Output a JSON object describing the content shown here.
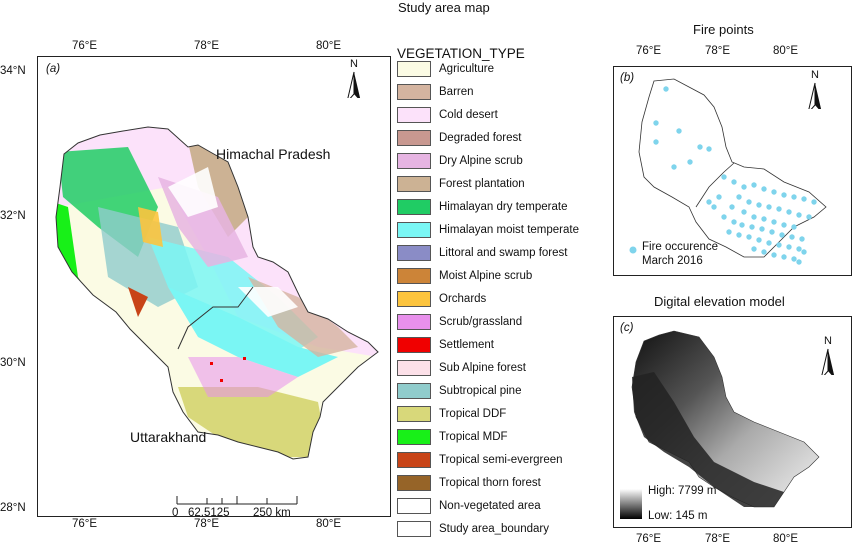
{
  "titles": {
    "main": "Study area map",
    "fire": "Fire points",
    "dem": "Digital elevation model"
  },
  "map_a": {
    "panel_label": "(a)",
    "lon_labels": [
      "76°E",
      "78°E",
      "80°E"
    ],
    "lat_labels": [
      "34°N",
      "32°N",
      "30°N",
      "28°N"
    ],
    "regions": {
      "north": "Himachal Pradesh",
      "south": "Uttarakhand"
    },
    "north_arrow": "N",
    "scale_bar": {
      "labels": [
        "0",
        "62.5125",
        "250 km"
      ]
    }
  },
  "legend": {
    "title": "VEGETATION_TYPE",
    "items": [
      {
        "label": "Agriculture",
        "color": "#fbfbe4"
      },
      {
        "label": "Barren",
        "color": "#d4b4a0"
      },
      {
        "label": "Cold desert",
        "color": "#fce2fa"
      },
      {
        "label": "Degraded forest",
        "color": "#c89890"
      },
      {
        "label": "Dry Alpine scrub",
        "color": "#e6b4e2"
      },
      {
        "label": "Forest plantation",
        "color": "#ccb294"
      },
      {
        "label": "Himalayan dry temperate",
        "color": "#20cc64"
      },
      {
        "label": "Himalayan moist temperate",
        "color": "#7af6f4"
      },
      {
        "label": "Littoral and swamp forest",
        "color": "#8a8cc6"
      },
      {
        "label": "Moist Alpine scrub",
        "color": "#cc8438"
      },
      {
        "label": "Orchards",
        "color": "#fcc43e"
      },
      {
        "label": "Scrub/grassland",
        "color": "#e890ec"
      },
      {
        "label": "Settlement",
        "color": "#f00000"
      },
      {
        "label": "Sub Alpine forest",
        "color": "#fce0e8"
      },
      {
        "label": "Subtropical pine",
        "color": "#90cccc"
      },
      {
        "label": "Tropical DDF",
        "color": "#d8d87a"
      },
      {
        "label": "Tropical MDF",
        "color": "#18f018"
      },
      {
        "label": "Tropical semi-evergreen",
        "color": "#c84418"
      },
      {
        "label": "Tropical thorn forest",
        "color": "#966428"
      },
      {
        "label": "Non-vegetated area",
        "color": "#ffffff"
      },
      {
        "label": "Study area_boundary",
        "color": "#ffffff"
      }
    ]
  },
  "map_b": {
    "panel_label": "(b)",
    "lon_labels": [
      "76°E",
      "78°E",
      "80°E"
    ],
    "north_arrow": "N",
    "point_color": "#7fd4ec",
    "legend_line1": "Fire occurence",
    "legend_line2": "March 2016"
  },
  "map_c": {
    "panel_label": "(c)",
    "lon_labels": [
      "76°E",
      "78°E",
      "80°E"
    ],
    "north_arrow": "N",
    "high_label": "High: 7799 m",
    "low_label": "Low: 145 m"
  }
}
